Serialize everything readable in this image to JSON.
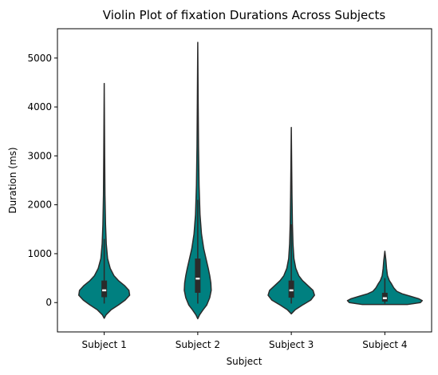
{
  "chart_data": {
    "type": "violin",
    "title": "Violin Plot of fixation Durations Across Subjects",
    "xlabel": "Subject",
    "ylabel": "Duration (ms)",
    "ylim": [
      -600,
      5600
    ],
    "yticks": [
      0,
      1000,
      2000,
      3000,
      4000,
      5000
    ],
    "ytick_labels": [
      "0",
      "1000",
      "2000",
      "3000",
      "4000",
      "5000"
    ],
    "categories": [
      "Subject 1",
      "Subject 2",
      "Subject 3",
      "Subject 4"
    ],
    "fill_color": "#008080",
    "line_color": "#2b2b2b",
    "series": [
      {
        "category": "Subject 1",
        "min": -320,
        "max": 4480,
        "q1": 110,
        "median": 250,
        "q3": 450,
        "whisker_low": -20,
        "whisker_high": 1300,
        "profile": [
          [
            -320,
            0
          ],
          [
            -250,
            0.05
          ],
          [
            -150,
            0.18
          ],
          [
            -50,
            0.38
          ],
          [
            50,
            0.56
          ],
          [
            150,
            0.68
          ],
          [
            250,
            0.66
          ],
          [
            350,
            0.54
          ],
          [
            450,
            0.38
          ],
          [
            550,
            0.26
          ],
          [
            700,
            0.16
          ],
          [
            900,
            0.09
          ],
          [
            1200,
            0.055
          ],
          [
            1600,
            0.035
          ],
          [
            2200,
            0.02
          ],
          [
            3000,
            0.012
          ],
          [
            4480,
            0
          ]
        ]
      },
      {
        "category": "Subject 2",
        "min": -330,
        "max": 5320,
        "q1": 200,
        "median": 490,
        "q3": 900,
        "whisker_low": -20,
        "whisker_high": 2100,
        "profile": [
          [
            -330,
            0
          ],
          [
            -250,
            0.05
          ],
          [
            -150,
            0.14
          ],
          [
            -50,
            0.24
          ],
          [
            100,
            0.32
          ],
          [
            250,
            0.36
          ],
          [
            400,
            0.35
          ],
          [
            550,
            0.32
          ],
          [
            700,
            0.28
          ],
          [
            900,
            0.22
          ],
          [
            1100,
            0.16
          ],
          [
            1400,
            0.1
          ],
          [
            1800,
            0.06
          ],
          [
            2400,
            0.035
          ],
          [
            3200,
            0.02
          ],
          [
            4200,
            0.01
          ],
          [
            5320,
            0
          ]
        ]
      },
      {
        "category": "Subject 3",
        "min": -230,
        "max": 3580,
        "q1": 100,
        "median": 250,
        "q3": 450,
        "whisker_low": -20,
        "whisker_high": 1600,
        "profile": [
          [
            -230,
            0
          ],
          [
            -150,
            0.1
          ],
          [
            -50,
            0.3
          ],
          [
            50,
            0.52
          ],
          [
            150,
            0.62
          ],
          [
            250,
            0.58
          ],
          [
            350,
            0.44
          ],
          [
            450,
            0.3
          ],
          [
            550,
            0.2
          ],
          [
            700,
            0.12
          ],
          [
            900,
            0.07
          ],
          [
            1200,
            0.045
          ],
          [
            1600,
            0.03
          ],
          [
            2200,
            0.018
          ],
          [
            2800,
            0.01
          ],
          [
            3580,
            0
          ]
        ]
      },
      {
        "category": "Subject 4",
        "min": -40,
        "max": 1050,
        "q1": 20,
        "median": 90,
        "q3": 200,
        "whisker_low": -20,
        "whisker_high": 500,
        "profile": [
          [
            -40,
            0.6
          ],
          [
            0,
            0.95
          ],
          [
            40,
            1.0
          ],
          [
            80,
            0.9
          ],
          [
            130,
            0.68
          ],
          [
            180,
            0.46
          ],
          [
            230,
            0.32
          ],
          [
            300,
            0.24
          ],
          [
            380,
            0.18
          ],
          [
            450,
            0.12
          ],
          [
            550,
            0.07
          ],
          [
            700,
            0.045
          ],
          [
            850,
            0.03
          ],
          [
            1050,
            0
          ]
        ]
      }
    ]
  }
}
